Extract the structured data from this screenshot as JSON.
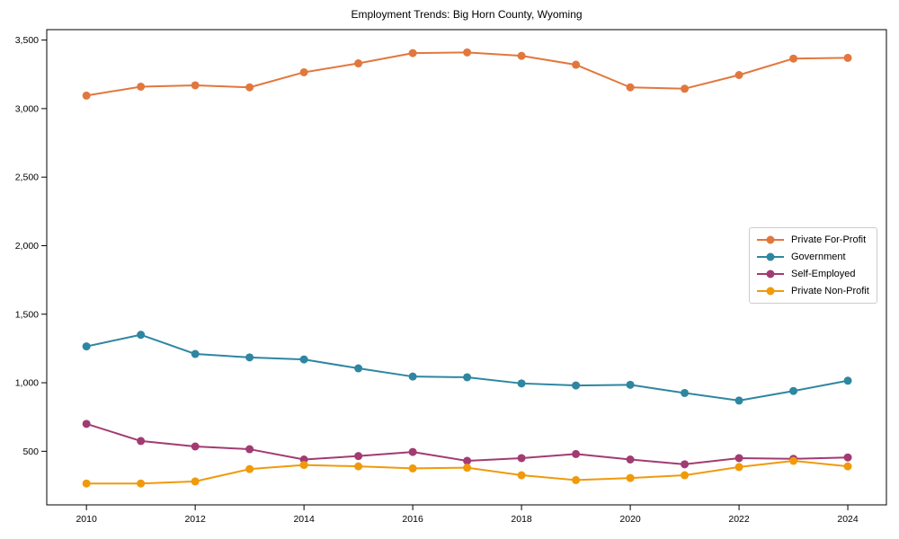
{
  "title": "Employment Trends: Big Horn County, Wyoming",
  "chart_data": {
    "type": "line",
    "title": "Employment Trends: Big Horn County, Wyoming",
    "xlabel": "",
    "ylabel": "",
    "grid": false,
    "marker": "circle",
    "legend_position": "center-right",
    "x": [
      2010,
      2011,
      2012,
      2013,
      2014,
      2015,
      2016,
      2017,
      2018,
      2019,
      2020,
      2021,
      2022,
      2023,
      2024
    ],
    "series": [
      {
        "name": "Private For-Profit",
        "color": "#E2773D",
        "values": [
          3095,
          3160,
          3170,
          3155,
          3265,
          3330,
          3405,
          3410,
          3385,
          3320,
          3155,
          3145,
          3245,
          3365,
          3370
        ]
      },
      {
        "name": "Government",
        "color": "#2E86A1",
        "values": [
          1265,
          1350,
          1210,
          1185,
          1170,
          1105,
          1045,
          1040,
          995,
          980,
          985,
          925,
          870,
          940,
          1015
        ]
      },
      {
        "name": "Self-Employed",
        "color": "#A23B72",
        "values": [
          700,
          575,
          535,
          515,
          440,
          465,
          495,
          430,
          450,
          480,
          440,
          405,
          450,
          445,
          455
        ]
      },
      {
        "name": "Private Non-Profit",
        "color": "#F09A0B",
        "values": [
          265,
          265,
          280,
          370,
          400,
          390,
          375,
          380,
          325,
          290,
          305,
          325,
          385,
          430,
          390
        ]
      }
    ],
    "xlim": [
      2009.27,
      2024.71
    ],
    "ylim": [
      109,
      3576
    ],
    "x_ticks": {
      "values": [
        2010,
        2012,
        2014,
        2016,
        2018,
        2020,
        2022,
        2024
      ],
      "labels": [
        "2010",
        "2012",
        "2014",
        "2016",
        "2018",
        "2020",
        "2022",
        "2024"
      ]
    },
    "y_ticks": {
      "values": [
        500,
        1000,
        1500,
        2000,
        2500,
        3000,
        3500
      ],
      "labels": [
        "500",
        "1,000",
        "1,500",
        "2,000",
        "2,500",
        "3,000",
        "3,500"
      ]
    }
  }
}
